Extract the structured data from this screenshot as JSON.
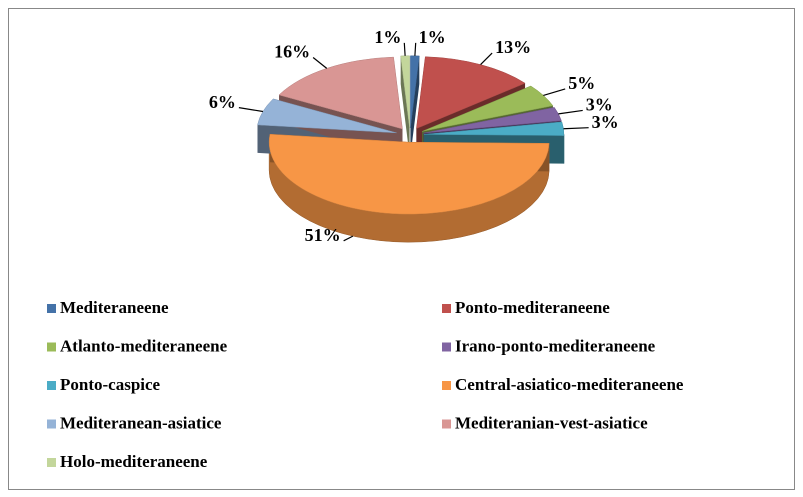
{
  "chart_data": {
    "type": "pie3d",
    "categories": [
      "Mediteraneene",
      "Ponto-mediteraneene",
      "Atlanto-mediteraneene",
      "Irano-ponto-mediteraneene",
      "Ponto-caspice",
      "Central-asiatico-mediteraneene",
      "Mediteranean-asiatice",
      "Mediteranian-vest-asiatice",
      "Holo-mediteraneene"
    ],
    "values": [
      1,
      13,
      5,
      3,
      3,
      51,
      6,
      16,
      1
    ],
    "value_labels": [
      "1%",
      "13%",
      "5%",
      "3%",
      "3%",
      "51%",
      "6%",
      "16%",
      "1%"
    ],
    "colors": [
      "#4472a8",
      "#c0504d",
      "#9bbb59",
      "#8064a2",
      "#4bacc6",
      "#f79646",
      "#95b3d7",
      "#d99694",
      "#c3d69b"
    ],
    "legend": "bottom"
  }
}
